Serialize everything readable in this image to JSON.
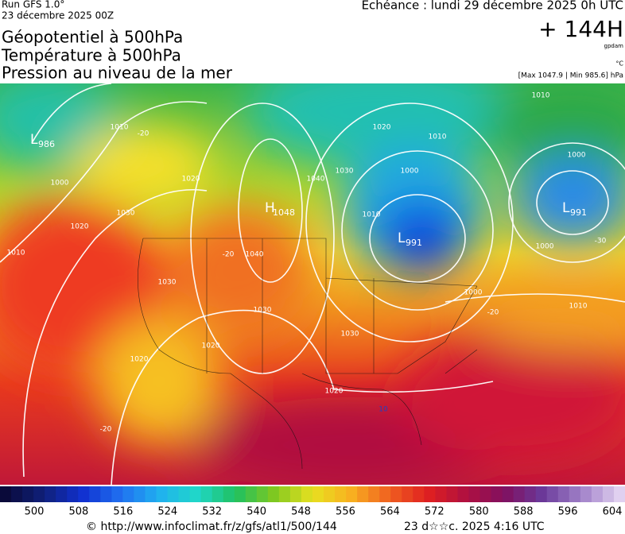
{
  "header": {
    "run": "Run GFS 1.0°",
    "date": "23 décembre 2025 00Z",
    "fields": [
      "Géopotentiel à 500hPa",
      "Température à 500hPa",
      "Pression au niveau de la mer"
    ],
    "echeance": "Echéance : lundi 29 décembre 2025 0h UTC",
    "step": "+ 144H",
    "unit_geo": "gpdam",
    "unit_temp": "°C",
    "range": "[Max 1047.9 | Min 985.6] hPa"
  },
  "systems": [
    {
      "label": "L",
      "value": "986"
    },
    {
      "label": "H",
      "value": "1048"
    },
    {
      "label": "L",
      "value": "991"
    },
    {
      "label": "L",
      "value": "991"
    }
  ],
  "contour_labels": [
    "1010",
    "1020",
    "1030",
    "1020",
    "1010",
    "1030",
    "1040",
    "1030",
    "1020",
    "1020",
    "1020",
    "1030",
    "1040",
    "1030",
    "1020",
    "1010",
    "1000",
    "1010",
    "1000",
    "1010",
    "1000",
    "1000",
    "1010",
    "-20",
    "-20",
    "-20",
    "-30",
    "-20",
    "10",
    "1000"
  ],
  "scale": {
    "labels": [
      500,
      508,
      516,
      524,
      532,
      540,
      548,
      556,
      564,
      572,
      580,
      588,
      596,
      604
    ]
  },
  "footer": {
    "url": "© http://www.infoclimat.fr/z/gfs/atl1/500/144",
    "time": "23 d☆☆c. 2025  4:16 UTC"
  }
}
